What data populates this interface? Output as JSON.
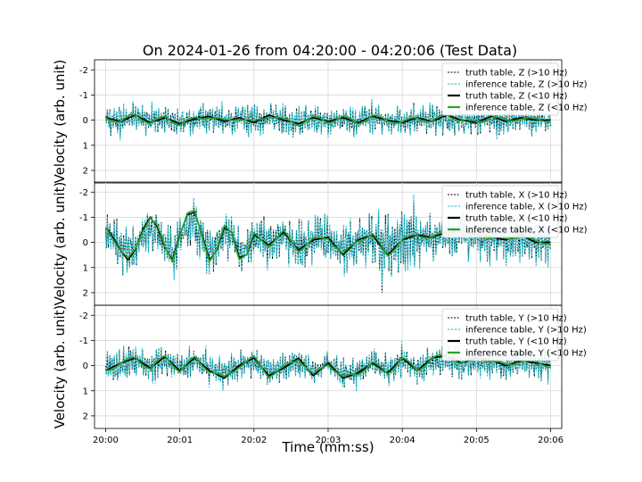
{
  "chart_data": {
    "type": "line",
    "title": "On 2024-01-26 from 04:20:00 - 04:20:06 (Test Data)",
    "xlabel": "Time (mm:ss)",
    "ylabel": "Velocity (arb. unit)",
    "x_ticks": [
      "20:00",
      "20:01",
      "20:02",
      "20:03",
      "20:04",
      "20:05",
      "20:06"
    ],
    "xlim": [
      -0.15,
      6.15
    ],
    "y_ticks": [
      -2,
      -1,
      0,
      1,
      2
    ],
    "y_inverted": true,
    "colors": {
      "truth": "#000000",
      "inference_high": "#17becf",
      "inference_low": "#2ca02c"
    },
    "panels": [
      {
        "component": "Z",
        "ylim": [
          2.5,
          -2.4
        ],
        "high_amplitude": 0.55,
        "low_curve": {
          "x": [
            0,
            0.2,
            0.4,
            0.6,
            0.8,
            1.0,
            1.2,
            1.4,
            1.6,
            1.8,
            2.0,
            2.2,
            2.4,
            2.6,
            2.8,
            3.0,
            3.2,
            3.4,
            3.6,
            3.8,
            4.0,
            4.2,
            4.4,
            4.6,
            4.8,
            5.0,
            5.2,
            5.4,
            5.6,
            5.8,
            6.0
          ],
          "y": [
            -0.1,
            0.05,
            -0.2,
            0.1,
            -0.1,
            0.15,
            -0.05,
            -0.15,
            0.05,
            -0.1,
            0.1,
            -0.2,
            0.0,
            0.15,
            -0.1,
            0.05,
            -0.1,
            0.1,
            -0.15,
            0.0,
            0.1,
            -0.1,
            0.05,
            -0.2,
            0.0,
            0.1,
            -0.15,
            0.05,
            -0.1,
            0.0,
            0.0
          ]
        },
        "legend": [
          "truth table, Z (>10 Hz)",
          "inference table, Z (>10 Hz)",
          "truth table, Z (<10 Hz)",
          "inference table, Z (<10 Hz)"
        ]
      },
      {
        "component": "X",
        "ylim": [
          2.5,
          -2.4
        ],
        "high_amplitude": 0.85,
        "low_curve": {
          "x": [
            0,
            0.1,
            0.2,
            0.3,
            0.4,
            0.5,
            0.6,
            0.7,
            0.8,
            0.9,
            1.0,
            1.1,
            1.2,
            1.3,
            1.4,
            1.5,
            1.6,
            1.7,
            1.8,
            1.9,
            2.0,
            2.2,
            2.4,
            2.6,
            2.8,
            3.0,
            3.2,
            3.4,
            3.6,
            3.8,
            4.0,
            4.2,
            4.4,
            4.6,
            4.8,
            5.0,
            5.2,
            5.4,
            5.6,
            5.8,
            6.0
          ],
          "y": [
            -0.6,
            -0.2,
            0.3,
            0.7,
            0.3,
            -0.5,
            -1.0,
            -0.6,
            0.2,
            0.7,
            -0.3,
            -1.1,
            -1.2,
            -0.3,
            0.7,
            0.3,
            -0.6,
            -0.4,
            0.6,
            0.5,
            -0.3,
            0.1,
            -0.4,
            0.3,
            -0.1,
            -0.2,
            0.5,
            -0.1,
            -0.3,
            0.5,
            -0.1,
            -0.3,
            -0.2,
            -0.4,
            -0.5,
            -0.3,
            -0.2,
            -0.1,
            -0.3,
            0.0,
            0.0
          ]
        },
        "legend": [
          "truth table, X (>10 Hz)",
          "inference table, X (>10 Hz)",
          "truth table, X (<10 Hz)",
          "inference table, X (<10 Hz)"
        ]
      },
      {
        "component": "Y",
        "ylim": [
          2.5,
          -2.4
        ],
        "high_amplitude": 0.55,
        "low_curve": {
          "x": [
            0,
            0.2,
            0.4,
            0.6,
            0.8,
            1.0,
            1.2,
            1.4,
            1.6,
            1.8,
            2.0,
            2.2,
            2.4,
            2.6,
            2.8,
            3.0,
            3.2,
            3.4,
            3.6,
            3.8,
            4.0,
            4.2,
            4.4,
            4.6,
            4.8,
            5.0,
            5.2,
            5.4,
            5.6,
            5.8,
            6.0
          ],
          "y": [
            0.2,
            -0.1,
            -0.3,
            0.1,
            -0.35,
            0.2,
            -0.3,
            0.2,
            0.5,
            0.0,
            -0.3,
            0.4,
            0.1,
            -0.3,
            0.4,
            -0.1,
            0.5,
            0.3,
            -0.1,
            0.3,
            -0.3,
            0.2,
            -0.3,
            -0.4,
            -0.1,
            -0.3,
            -0.2,
            0.0,
            -0.2,
            -0.1,
            0.0
          ]
        },
        "legend": [
          "truth table, Y (>10 Hz)",
          "inference table, Y (>10 Hz)",
          "truth table, Y (<10 Hz)",
          "inference table, Y (<10 Hz)"
        ]
      }
    ]
  }
}
